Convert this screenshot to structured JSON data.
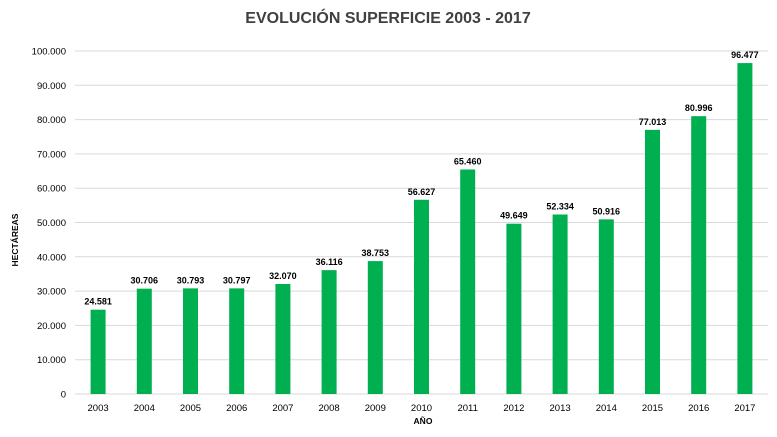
{
  "chart_data": {
    "type": "bar",
    "title": "EVOLUCIÓN SUPERFICIE 2003 - 2017",
    "xlabel": "AÑO",
    "ylabel": "HECTÁREAS",
    "ylim": [
      0,
      100000
    ],
    "yticks": [
      0,
      10000,
      20000,
      30000,
      40000,
      50000,
      60000,
      70000,
      80000,
      90000,
      100000
    ],
    "ytick_labels": [
      "0",
      "10.000",
      "20.000",
      "30.000",
      "40.000",
      "50.000",
      "60.000",
      "70.000",
      "80.000",
      "90.000",
      "100.000"
    ],
    "grid": true,
    "bar_color": "#00b050",
    "categories": [
      "2003",
      "2004",
      "2005",
      "2006",
      "2007",
      "2008",
      "2009",
      "2010",
      "2011",
      "2012",
      "2013",
      "2014",
      "2015",
      "2016",
      "2017"
    ],
    "values": [
      24581,
      30706,
      30793,
      30797,
      32070,
      36116,
      38753,
      56627,
      65460,
      49649,
      52334,
      50916,
      77013,
      80996,
      96477
    ],
    "data_labels": [
      "24.581",
      "30.706",
      "30.793",
      "30.797",
      "32.070",
      "36.116",
      "38.753",
      "56.627",
      "65.460",
      "49.649",
      "52.334",
      "50.916",
      "77.013",
      "80.996",
      "96.477"
    ]
  }
}
